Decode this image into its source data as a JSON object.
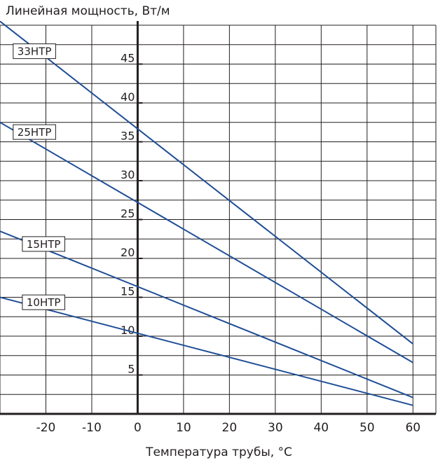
{
  "chart_data": {
    "type": "line",
    "title": "Линейная мощность, Вт/м",
    "xlabel": "Температура трубы, °C",
    "ylabel": "",
    "x_ticks": [
      -20,
      -10,
      0,
      10,
      20,
      30,
      40,
      50,
      60
    ],
    "y_ticks": [
      5,
      10,
      15,
      20,
      25,
      30,
      35,
      40,
      45
    ],
    "xlim": [
      -30,
      65
    ],
    "ylim": [
      0,
      50
    ],
    "grid": true,
    "series": [
      {
        "name": "33НТР",
        "x": [
          -30,
          60
        ],
        "y": [
          50.5,
          9.0
        ],
        "label_at": [
          -28,
          46.7
        ]
      },
      {
        "name": "25НТР",
        "x": [
          -30,
          60
        ],
        "y": [
          37.5,
          6.6
        ],
        "label_at": [
          -28,
          36.3
        ]
      },
      {
        "name": "15НТР",
        "x": [
          -30,
          60
        ],
        "y": [
          23.5,
          2.1
        ],
        "label_at": [
          -26,
          21.9
        ]
      },
      {
        "name": "10НТР",
        "x": [
          -30,
          60
        ],
        "y": [
          15.0,
          1.1
        ],
        "label_at": [
          -26,
          14.4
        ]
      }
    ],
    "colors": {
      "line": "#1f4e96",
      "grid": "#231f20",
      "axis": "#231f20"
    }
  }
}
